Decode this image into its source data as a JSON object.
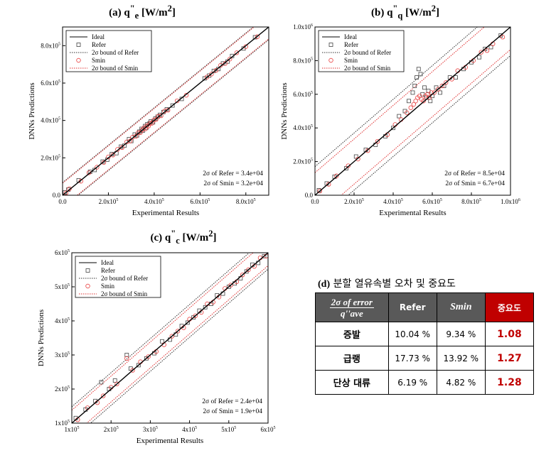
{
  "chart_data": [
    {
      "id": "a",
      "type": "scatter",
      "title": "(a)  q\"e [W/m2]",
      "title_parts": {
        "prefix": "(a)  q",
        "sup": "\"",
        "sub": "e",
        "unit": " [W/m",
        "unit_sup": "2",
        "unit_end": "]"
      },
      "xlabel": "Experimental Results",
      "ylabel": "DNNs Predictions",
      "xlim": [
        0,
        900000
      ],
      "ylim": [
        0,
        900000
      ],
      "xticks": [
        0,
        200000,
        400000,
        600000,
        800000
      ],
      "yticks": [
        0,
        200000,
        400000,
        600000,
        800000
      ],
      "xtick_labels": [
        {
          "m": "0.0",
          "e": ""
        },
        {
          "m": "2.0x10",
          "e": "5"
        },
        {
          "m": "4.0x10",
          "e": "5"
        },
        {
          "m": "6.0x10",
          "e": "5"
        },
        {
          "m": "8.0x10",
          "e": "5"
        }
      ],
      "ytick_labels": [
        {
          "m": "0.0",
          "e": ""
        },
        {
          "m": "2.0x10",
          "e": "5"
        },
        {
          "m": "4.0x10",
          "e": "5"
        },
        {
          "m": "6.0x10",
          "e": "5"
        },
        {
          "m": "8.0x10",
          "e": "5"
        }
      ],
      "legend": [
        "Ideal",
        "Refer",
        "2σ bound of Refer",
        "Smin",
        "2σ bound of Smin"
      ],
      "legend_position": "top-left",
      "annotations": [
        "2σ of Refer = 3.4e+04",
        "2σ of Smin = 3.2e+04"
      ],
      "sigma_refer": 68000,
      "sigma_smin": 64000,
      "series": [
        {
          "name": "Refer",
          "marker": "square",
          "x": [
            10000,
            25000,
            70000,
            120000,
            140000,
            175000,
            195000,
            215000,
            235000,
            255000,
            270000,
            290000,
            300000,
            315000,
            325000,
            335000,
            345000,
            350000,
            360000,
            365000,
            370000,
            380000,
            385000,
            395000,
            405000,
            415000,
            425000,
            440000,
            455000,
            480000,
            520000,
            620000,
            640000,
            660000,
            680000,
            700000,
            720000,
            740000,
            790000,
            840000
          ],
          "y": [
            15000,
            30000,
            80000,
            125000,
            135000,
            180000,
            190000,
            220000,
            225000,
            260000,
            265000,
            300000,
            290000,
            325000,
            320000,
            340000,
            355000,
            345000,
            370000,
            360000,
            380000,
            385000,
            395000,
            390000,
            410000,
            420000,
            430000,
            445000,
            460000,
            480000,
            515000,
            625000,
            640000,
            665000,
            675000,
            705000,
            715000,
            745000,
            785000,
            845000
          ]
        },
        {
          "name": "Smin",
          "marker": "circle",
          "x": [
            15000,
            30000,
            80000,
            115000,
            150000,
            180000,
            200000,
            220000,
            240000,
            260000,
            280000,
            295000,
            305000,
            320000,
            330000,
            340000,
            348000,
            355000,
            362000,
            368000,
            375000,
            382000,
            390000,
            398000,
            408000,
            418000,
            430000,
            445000,
            460000,
            500000,
            540000,
            630000,
            650000,
            670000,
            690000,
            710000,
            730000,
            760000,
            800000,
            850000
          ],
          "y": [
            12000,
            35000,
            75000,
            120000,
            150000,
            175000,
            205000,
            215000,
            245000,
            255000,
            285000,
            290000,
            310000,
            315000,
            335000,
            335000,
            350000,
            360000,
            355000,
            372000,
            370000,
            385000,
            385000,
            402000,
            405000,
            422000,
            425000,
            450000,
            455000,
            505000,
            535000,
            632000,
            648000,
            668000,
            695000,
            705000,
            728000,
            762000,
            795000,
            848000
          ]
        }
      ]
    },
    {
      "id": "b",
      "type": "scatter",
      "title": "(b)  q\"q [W/m2]",
      "title_parts": {
        "prefix": "(b)  q",
        "sup": "\"",
        "sub": "q",
        "unit": " [W/m",
        "unit_sup": "2",
        "unit_end": "]"
      },
      "xlabel": "Experimental Results",
      "ylabel": "DNNs Predictions",
      "xlim": [
        0,
        1000000
      ],
      "ylim": [
        0,
        1000000
      ],
      "xticks": [
        0,
        200000,
        400000,
        600000,
        800000,
        1000000
      ],
      "yticks": [
        0,
        200000,
        400000,
        600000,
        800000,
        1000000
      ],
      "xtick_labels": [
        {
          "m": "0.0",
          "e": ""
        },
        {
          "m": "2.0x10",
          "e": "5"
        },
        {
          "m": "4.0x10",
          "e": "5"
        },
        {
          "m": "6.0x10",
          "e": "5"
        },
        {
          "m": "8.0x10",
          "e": "5"
        },
        {
          "m": "1.0x10",
          "e": "6"
        }
      ],
      "ytick_labels": [
        {
          "m": "0.0",
          "e": ""
        },
        {
          "m": "2.0x10",
          "e": "5"
        },
        {
          "m": "4.0x10",
          "e": "5"
        },
        {
          "m": "6.0x10",
          "e": "5"
        },
        {
          "m": "8.0x10",
          "e": "5"
        },
        {
          "m": "1.0x10",
          "e": "6"
        }
      ],
      "legend": [
        "Ideal",
        "Refer",
        "2σ bound of Refer",
        "Smin",
        "2σ bound of Smin"
      ],
      "legend_position": "top-left",
      "annotations": [
        "2σ of Refer = 8.5e+04",
        "2σ of Smin = 6.7e+04"
      ],
      "sigma_refer": 170000,
      "sigma_smin": 134000,
      "series": [
        {
          "name": "Refer",
          "marker": "square",
          "x": [
            20000,
            60000,
            100000,
            160000,
            210000,
            260000,
            310000,
            360000,
            400000,
            430000,
            460000,
            480000,
            500000,
            510000,
            520000,
            530000,
            540000,
            550000,
            560000,
            570000,
            580000,
            590000,
            600000,
            620000,
            640000,
            660000,
            690000,
            720000,
            760000,
            800000,
            840000,
            870000,
            900000,
            950000
          ],
          "y": [
            30000,
            70000,
            110000,
            160000,
            230000,
            270000,
            300000,
            350000,
            400000,
            470000,
            500000,
            560000,
            610000,
            650000,
            700000,
            750000,
            720000,
            600000,
            640000,
            580000,
            620000,
            560000,
            590000,
            640000,
            610000,
            650000,
            700000,
            700000,
            750000,
            790000,
            820000,
            870000,
            880000,
            950000
          ]
        },
        {
          "name": "Smin",
          "marker": "circle",
          "x": [
            25000,
            70000,
            110000,
            170000,
            220000,
            270000,
            320000,
            370000,
            410000,
            440000,
            470000,
            490000,
            505000,
            515000,
            525000,
            535000,
            545000,
            555000,
            565000,
            575000,
            585000,
            595000,
            610000,
            630000,
            650000,
            670000,
            700000,
            730000,
            770000,
            810000,
            850000,
            880000,
            910000,
            960000
          ],
          "y": [
            25000,
            65000,
            115000,
            175000,
            215000,
            265000,
            320000,
            360000,
            420000,
            450000,
            490000,
            520000,
            540000,
            560000,
            580000,
            590000,
            570000,
            560000,
            590000,
            600000,
            580000,
            610000,
            610000,
            630000,
            650000,
            670000,
            690000,
            740000,
            760000,
            800000,
            850000,
            860000,
            900000,
            940000
          ]
        }
      ]
    },
    {
      "id": "c",
      "type": "scatter",
      "title": "(c)  q\"c [W/m2]",
      "title_parts": {
        "prefix": "(c)  q",
        "sup": "\"",
        "sub": "c",
        "unit": " [W/m",
        "unit_sup": "2",
        "unit_end": "]"
      },
      "xlabel": "Experimental Results",
      "ylabel": "DNNs Predictions",
      "xlim": [
        100000,
        600000
      ],
      "ylim": [
        100000,
        600000
      ],
      "xticks": [
        100000,
        200000,
        300000,
        400000,
        500000,
        600000
      ],
      "yticks": [
        100000,
        200000,
        300000,
        400000,
        500000,
        600000
      ],
      "xtick_labels": [
        {
          "m": "1x10",
          "e": "5"
        },
        {
          "m": "2x10",
          "e": "5"
        },
        {
          "m": "3x10",
          "e": "5"
        },
        {
          "m": "4x10",
          "e": "5"
        },
        {
          "m": "5x10",
          "e": "5"
        },
        {
          "m": "6x10",
          "e": "5"
        }
      ],
      "ytick_labels": [
        {
          "m": "1x10",
          "e": "5"
        },
        {
          "m": "2x10",
          "e": "5"
        },
        {
          "m": "3x10",
          "e": "5"
        },
        {
          "m": "4x10",
          "e": "5"
        },
        {
          "m": "5x10",
          "e": "5"
        },
        {
          "m": "6x10",
          "e": "5"
        }
      ],
      "legend": [
        "Ideal",
        "Refer",
        "2σ bound of Refer",
        "Smin",
        "2σ bound of Smin"
      ],
      "legend_position": "top-left",
      "annotations": [
        "2σ of Refer = 2.4e+04",
        "2σ of Smin = 1.9e+04"
      ],
      "sigma_refer": 48000,
      "sigma_smin": 38000,
      "series": [
        {
          "name": "Refer",
          "marker": "square",
          "x": [
            110000,
            135000,
            160000,
            175000,
            195000,
            210000,
            240000,
            250000,
            270000,
            290000,
            310000,
            330000,
            350000,
            365000,
            380000,
            395000,
            410000,
            425000,
            440000,
            455000,
            470000,
            485000,
            500000,
            515000,
            530000,
            545000,
            560000,
            575000,
            590000
          ],
          "y": [
            115000,
            140000,
            165000,
            220000,
            200000,
            225000,
            300000,
            260000,
            270000,
            290000,
            305000,
            340000,
            345000,
            360000,
            385000,
            395000,
            410000,
            430000,
            440000,
            450000,
            475000,
            480000,
            500000,
            510000,
            525000,
            545000,
            565000,
            570000,
            590000
          ]
        },
        {
          "name": "Smin",
          "marker": "circle",
          "x": [
            115000,
            140000,
            165000,
            180000,
            200000,
            215000,
            240000,
            255000,
            275000,
            295000,
            315000,
            335000,
            355000,
            370000,
            385000,
            400000,
            415000,
            430000,
            445000,
            460000,
            475000,
            490000,
            505000,
            520000,
            535000,
            550000,
            565000,
            580000,
            595000
          ],
          "y": [
            110000,
            145000,
            160000,
            180000,
            205000,
            215000,
            290000,
            255000,
            280000,
            295000,
            310000,
            330000,
            355000,
            370000,
            380000,
            405000,
            415000,
            425000,
            450000,
            455000,
            470000,
            495000,
            505000,
            515000,
            535000,
            550000,
            560000,
            585000,
            590000
          ]
        }
      ]
    }
  ],
  "table": {
    "title_prefix": "(d)",
    "title": "분할 열유속별 오차 및 중요도",
    "header": {
      "metric_num": "2σ of error",
      "metric_den": "q''ave",
      "refer": "Refer",
      "smin": "Smin",
      "importance": "중요도"
    },
    "rows": [
      {
        "label": "증발",
        "refer": "10.04 %",
        "smin": "9.34 %",
        "importance": "1.08"
      },
      {
        "label": "급랭",
        "refer": "17.73 %",
        "smin": "13.92 %",
        "importance": "1.27"
      },
      {
        "label": "단상 대류",
        "refer": "6.19 %",
        "smin": "4.82 %",
        "importance": "1.28"
      }
    ]
  }
}
